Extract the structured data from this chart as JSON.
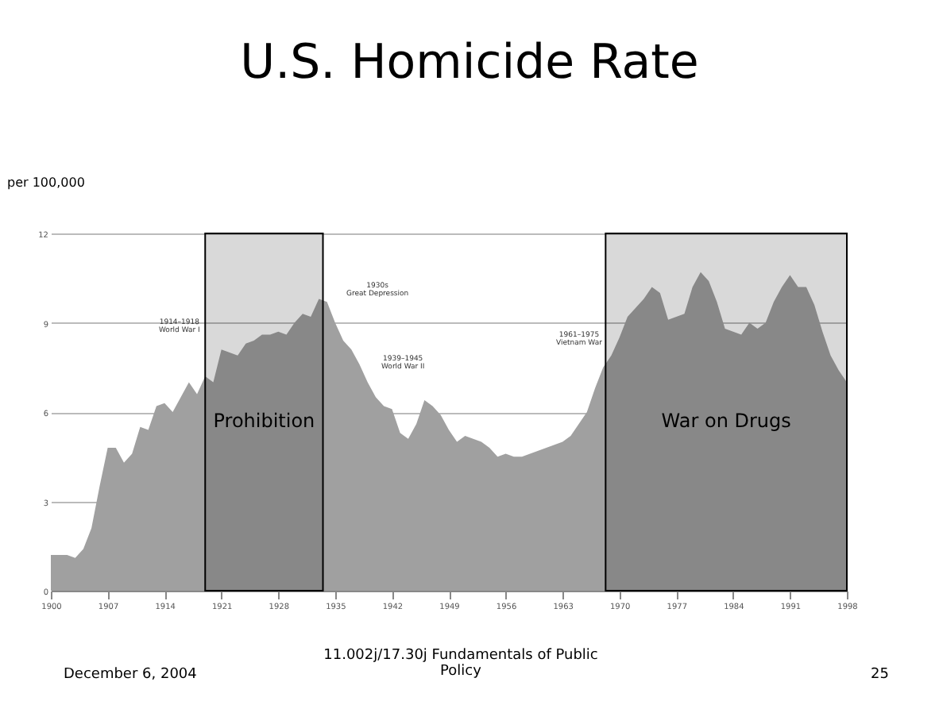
{
  "chart_data": {
    "type": "area",
    "title": "U.S. Homicide Rate",
    "ylabel": "per 100,000",
    "x": [
      1900,
      1901,
      1902,
      1903,
      1904,
      1905,
      1906,
      1907,
      1908,
      1909,
      1910,
      1911,
      1912,
      1913,
      1914,
      1915,
      1916,
      1917,
      1918,
      1919,
      1920,
      1921,
      1922,
      1923,
      1924,
      1925,
      1926,
      1927,
      1928,
      1929,
      1930,
      1931,
      1932,
      1933,
      1934,
      1935,
      1936,
      1937,
      1938,
      1939,
      1940,
      1941,
      1942,
      1943,
      1944,
      1945,
      1946,
      1947,
      1948,
      1949,
      1950,
      1951,
      1952,
      1953,
      1954,
      1955,
      1956,
      1957,
      1958,
      1959,
      1960,
      1961,
      1962,
      1963,
      1964,
      1965,
      1966,
      1967,
      1968,
      1969,
      1970,
      1971,
      1972,
      1973,
      1974,
      1975,
      1976,
      1977,
      1978,
      1979,
      1980,
      1981,
      1982,
      1983,
      1984,
      1985,
      1986,
      1987,
      1988,
      1989,
      1990,
      1991,
      1992,
      1993,
      1994,
      1995,
      1996,
      1997,
      1998
    ],
    "series": [
      {
        "color": "#a0a0a0",
        "values": [
          1.2,
          1.2,
          1.2,
          1.1,
          1.4,
          2.1,
          3.5,
          4.8,
          4.8,
          4.3,
          4.6,
          5.5,
          5.4,
          6.2,
          6.3,
          6.0,
          6.5,
          7.0,
          6.6,
          7.2,
          7.0,
          8.1,
          8.0,
          7.9,
          8.3,
          8.4,
          8.6,
          8.6,
          8.7,
          8.6,
          9.0,
          9.3,
          9.2,
          9.8,
          9.7,
          9.0,
          8.4,
          8.1,
          7.6,
          7.0,
          6.5,
          6.2,
          6.1,
          5.3,
          5.1,
          5.6,
          6.4,
          6.2,
          5.9,
          5.4,
          5.0,
          5.2,
          5.1,
          5.0,
          4.8,
          4.5,
          4.6,
          4.5,
          4.5,
          4.6,
          4.7,
          4.8,
          4.9,
          5.0,
          5.2,
          5.6,
          6.0,
          6.8,
          7.5,
          7.9,
          8.5,
          9.2,
          9.5,
          9.8,
          10.2,
          10.0,
          9.1,
          9.2,
          9.3,
          10.2,
          10.7,
          10.4,
          9.7,
          8.8,
          8.7,
          8.6,
          9.0,
          8.8,
          9.0,
          9.7,
          10.2,
          10.6,
          10.2,
          10.2,
          9.6,
          8.7,
          7.9,
          7.4,
          7.0
        ]
      }
    ],
    "xlim": [
      1900,
      1998
    ],
    "xticks": [
      1900,
      1907,
      1914,
      1921,
      1928,
      1935,
      1942,
      1949,
      1956,
      1963,
      1970,
      1977,
      1984,
      1991,
      1998
    ],
    "ylim": [
      0,
      12
    ],
    "yticks": [
      0,
      3,
      6,
      9,
      12
    ],
    "grid": "y",
    "bands": [
      {
        "axis": "x",
        "from": 1919,
        "to": 1933.5,
        "label": "Prohibition",
        "color": "#000000"
      },
      {
        "axis": "x",
        "from": 1968.3,
        "to": 1998,
        "label": "War on Drugs",
        "color": "#000000"
      }
    ],
    "annotations": [
      "1914–1918\nWorld War I",
      "1930s\nGreat Depression",
      "1939–1945\nWorld War II",
      "1961–1975\nVietnam War",
      "December 6, 2004",
      "11.002j/17.30j Fundamentals of Public Policy",
      "25"
    ]
  }
}
